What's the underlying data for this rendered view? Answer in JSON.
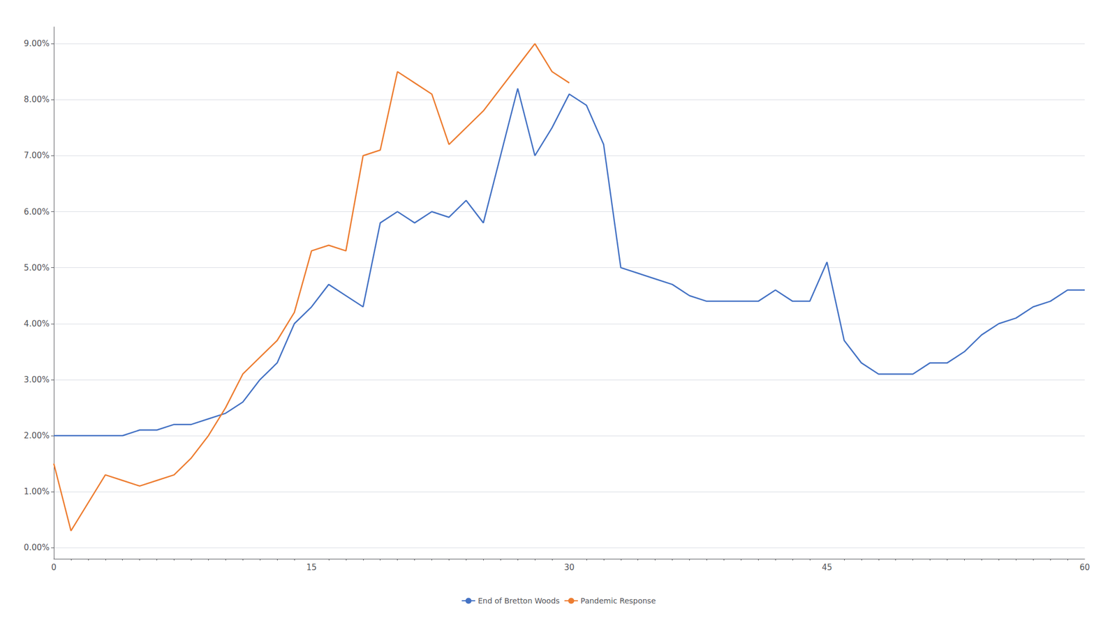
{
  "chart_data": {
    "type": "line",
    "series": [
      {
        "name": "End of Bretton Woods",
        "color": "#4472C4",
        "x": [
          0,
          1,
          2,
          3,
          4,
          5,
          6,
          7,
          8,
          9,
          10,
          11,
          12,
          13,
          14,
          15,
          16,
          17,
          18,
          19,
          20,
          21,
          22,
          23,
          24,
          25,
          26,
          27,
          28,
          29,
          30,
          31,
          32,
          33,
          34,
          35,
          36,
          37,
          38,
          39,
          40,
          41,
          42,
          43,
          44,
          45,
          46,
          47,
          48,
          49,
          50,
          51,
          52,
          53,
          54,
          55,
          56,
          57,
          58,
          59,
          60
        ],
        "values": [
          0.02,
          0.02,
          0.02,
          0.02,
          0.02,
          0.021,
          0.021,
          0.022,
          0.022,
          0.023,
          0.024,
          0.026,
          0.03,
          0.033,
          0.04,
          0.043,
          0.047,
          0.045,
          0.043,
          0.058,
          0.06,
          0.058,
          0.06,
          0.059,
          0.062,
          0.058,
          0.07,
          0.082,
          0.07,
          0.075,
          0.081,
          0.079,
          0.072,
          0.05,
          0.049,
          0.048,
          0.047,
          0.045,
          0.044,
          0.044,
          0.044,
          0.044,
          0.046,
          0.044,
          0.044,
          0.051,
          0.037,
          0.033,
          0.031,
          0.031,
          0.031,
          0.033,
          0.033,
          0.035,
          0.038,
          0.04,
          0.041,
          0.043,
          0.044,
          0.046,
          0.046
        ]
      },
      {
        "name": "Pandemic Response",
        "color": "#ED7D31",
        "x": [
          0,
          1,
          2,
          3,
          4,
          5,
          6,
          7,
          8,
          9,
          10,
          11,
          12,
          13,
          14,
          15,
          16,
          17,
          18,
          19,
          20,
          21,
          22,
          23,
          24,
          25,
          26,
          27,
          28,
          29,
          30
        ],
        "values": [
          0.015,
          0.003,
          0.008,
          0.013,
          0.012,
          0.011,
          0.012,
          0.013,
          0.016,
          0.02,
          0.025,
          0.031,
          0.034,
          0.037,
          0.042,
          0.053,
          0.054,
          0.053,
          0.07,
          0.071,
          0.085,
          0.083,
          0.081,
          0.072,
          0.075,
          0.078,
          0.082,
          0.086,
          0.09,
          0.085,
          0.083
        ]
      }
    ],
    "xlim": [
      0,
      60
    ],
    "xticks": [
      0,
      15,
      30,
      45,
      60
    ],
    "ylim": [
      -0.002,
      0.093
    ],
    "yticks": [
      {
        "value": 0.0,
        "label": "0.00%"
      },
      {
        "value": 0.01,
        "label": "1.00%"
      },
      {
        "value": 0.02,
        "label": "2.00%"
      },
      {
        "value": 0.03,
        "label": "3.00%"
      },
      {
        "value": 0.04,
        "label": "4.00%"
      },
      {
        "value": 0.05,
        "label": "5.00%"
      },
      {
        "value": 0.06,
        "label": "6.00%"
      },
      {
        "value": 0.07,
        "label": "7.00%"
      },
      {
        "value": 0.08,
        "label": "8.00%"
      },
      {
        "value": 0.09,
        "label": "9.00%"
      }
    ],
    "grid": true,
    "legend": "bottom"
  }
}
